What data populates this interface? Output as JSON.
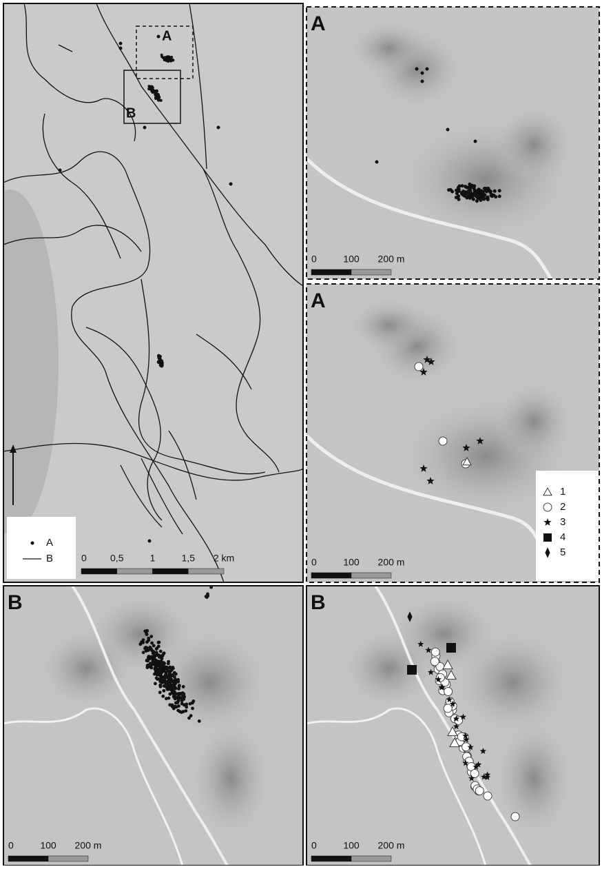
{
  "overview": {
    "box_labels": [
      "A",
      "B"
    ],
    "legend": [
      "A",
      "B"
    ],
    "scale": [
      "0",
      "0,5",
      "1",
      "1,5",
      "2 km"
    ]
  },
  "panels": [
    {
      "label": "A",
      "scale": [
        "0",
        "100",
        "200 m"
      ]
    },
    {
      "label": "A",
      "scale": [
        "0",
        "100",
        "200 m"
      ],
      "legend": [
        "1",
        "2",
        "3",
        "4",
        "5"
      ]
    },
    {
      "label": "B",
      "scale": [
        "0",
        "100",
        "200 m"
      ]
    },
    {
      "label": "B",
      "scale": [
        "0",
        "100",
        "200 m"
      ]
    }
  ]
}
